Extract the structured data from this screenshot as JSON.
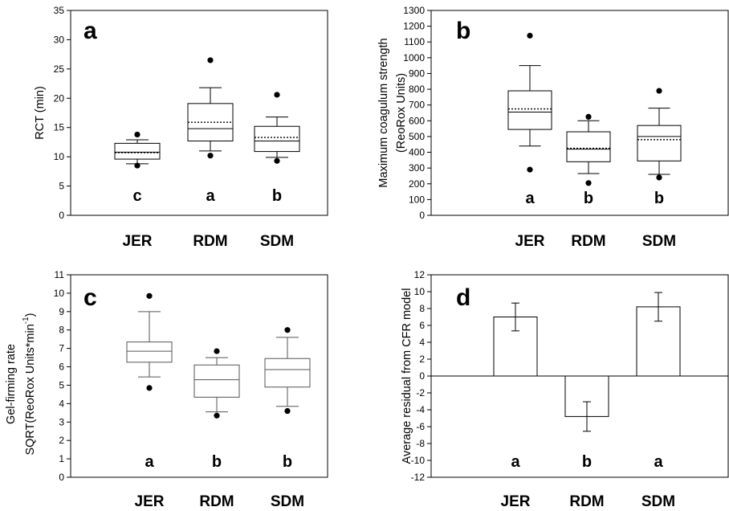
{
  "chart_data": [
    {
      "panel": "a",
      "type": "box",
      "ylabel": [
        "RCT (min)"
      ],
      "ylim": [
        0,
        35
      ],
      "yticks": [
        0,
        5,
        10,
        15,
        20,
        25,
        30,
        35
      ],
      "categories": [
        "JER",
        "RDM",
        "SDM"
      ],
      "group_letters": [
        "c",
        "a",
        "b"
      ],
      "boxes": [
        {
          "whisker_low": 8.8,
          "q1": 9.6,
          "median": 10.8,
          "mean": 10.7,
          "q3": 12.3,
          "whisker_high": 12.9,
          "outliers": [
            8.5,
            13.8
          ]
        },
        {
          "whisker_low": 11.0,
          "q1": 12.7,
          "median": 14.8,
          "mean": 15.9,
          "q3": 19.1,
          "whisker_high": 21.8,
          "outliers": [
            10.2,
            26.5
          ]
        },
        {
          "whisker_low": 9.9,
          "q1": 10.9,
          "median": 12.7,
          "mean": 13.3,
          "q3": 15.2,
          "whisker_high": 16.8,
          "outliers": [
            9.3,
            20.6
          ]
        }
      ]
    },
    {
      "panel": "b",
      "type": "box",
      "ylabel": [
        "Maximum coagulum strength",
        "(ReoRox Units)"
      ],
      "ylim": [
        0,
        1300
      ],
      "yticks": [
        0,
        100,
        200,
        300,
        400,
        500,
        600,
        700,
        800,
        900,
        1000,
        1100,
        1200,
        1300
      ],
      "categories": [
        "JER",
        "RDM",
        "SDM"
      ],
      "group_letters": [
        "a",
        "b",
        "b"
      ],
      "boxes": [
        {
          "whisker_low": 440,
          "q1": 545,
          "median": 655,
          "mean": 675,
          "q3": 790,
          "whisker_high": 950,
          "outliers": [
            290,
            1140
          ]
        },
        {
          "whisker_low": 265,
          "q1": 340,
          "median": 420,
          "mean": 425,
          "q3": 530,
          "whisker_high": 600,
          "outliers": [
            205,
            625
          ]
        },
        {
          "whisker_low": 260,
          "q1": 345,
          "median": 500,
          "mean": 480,
          "q3": 570,
          "whisker_high": 680,
          "outliers": [
            240,
            790
          ]
        }
      ]
    },
    {
      "panel": "c",
      "type": "box",
      "ylabel": [
        "Gel-firming rate",
        "SQRT(ReoRox Units*min",
        "-1",
        ")"
      ],
      "ylim": [
        0,
        11
      ],
      "yticks": [
        0,
        1,
        2,
        3,
        4,
        5,
        6,
        7,
        8,
        9,
        10,
        11
      ],
      "categories": [
        "JER",
        "RDM",
        "SDM"
      ],
      "group_letters": [
        "a",
        "b",
        "b"
      ],
      "boxes": [
        {
          "whisker_low": 5.45,
          "q1": 6.25,
          "median": 6.85,
          "q3": 7.35,
          "whisker_high": 9.0,
          "outliers": [
            4.85,
            9.85
          ]
        },
        {
          "whisker_low": 3.55,
          "q1": 4.35,
          "median": 5.3,
          "q3": 6.1,
          "whisker_high": 6.5,
          "outliers": [
            3.35,
            6.85
          ]
        },
        {
          "whisker_low": 3.85,
          "q1": 4.9,
          "median": 5.85,
          "q3": 6.45,
          "whisker_high": 7.6,
          "outliers": [
            3.6,
            8.0
          ]
        }
      ]
    },
    {
      "panel": "d",
      "type": "bar",
      "ylabel": [
        "Average residual from CFR model"
      ],
      "ylim": [
        -12,
        12
      ],
      "yticks": [
        -12,
        -10,
        -8,
        -6,
        -4,
        -2,
        0,
        2,
        4,
        6,
        8,
        10,
        12
      ],
      "categories": [
        "JER",
        "RDM",
        "SDM"
      ],
      "group_letters": [
        "a",
        "b",
        "a"
      ],
      "values": [
        7.0,
        -4.8,
        8.2
      ],
      "errors": [
        1.65,
        1.75,
        1.7
      ]
    }
  ]
}
